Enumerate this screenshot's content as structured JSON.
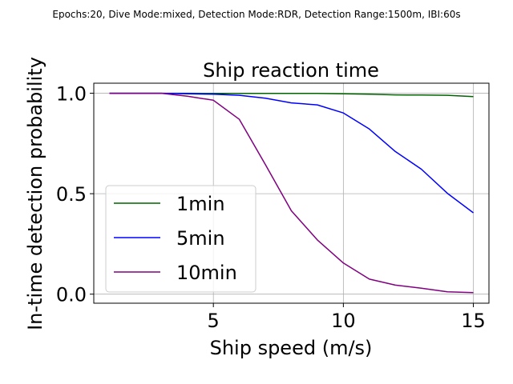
{
  "suptitle": "Epochs:20, Dive Mode:mixed, Detection Mode:RDR, Detection Range:1500m, IBI:60s",
  "chart_data": {
    "type": "line",
    "title": "Ship reaction time",
    "xlabel": "Ship speed (m/s)",
    "ylabel": "In-time detection probability",
    "xlim": [
      0.4,
      15.6
    ],
    "ylim": [
      -0.045,
      1.05
    ],
    "xticks": [
      5,
      10,
      15
    ],
    "yticks": [
      0.0,
      0.5,
      1.0
    ],
    "xtick_labels": [
      "5",
      "10",
      "15"
    ],
    "ytick_labels": [
      "0.0",
      "0.5",
      "1.0"
    ],
    "grid": true,
    "legend_position": "lower-left",
    "x": [
      1,
      2,
      3,
      4,
      5,
      6,
      7,
      8,
      9,
      10,
      11,
      12,
      13,
      14,
      15
    ],
    "series": [
      {
        "name": "1min",
        "color": "#006400",
        "values": [
          1.0,
          1.0,
          1.0,
          1.0,
          0.999,
          0.999,
          0.999,
          0.999,
          0.999,
          0.997,
          0.995,
          0.992,
          0.991,
          0.99,
          0.983
        ]
      },
      {
        "name": "5min",
        "color": "#0000ff",
        "values": [
          1.0,
          1.0,
          1.0,
          0.997,
          0.995,
          0.99,
          0.975,
          0.952,
          0.942,
          0.902,
          0.822,
          0.71,
          0.622,
          0.502,
          0.405
        ]
      },
      {
        "name": "10min",
        "color": "#800080",
        "values": [
          1.0,
          1.0,
          1.0,
          0.985,
          0.965,
          0.87,
          0.645,
          0.415,
          0.27,
          0.155,
          0.075,
          0.045,
          0.03,
          0.012,
          0.008
        ]
      }
    ]
  }
}
